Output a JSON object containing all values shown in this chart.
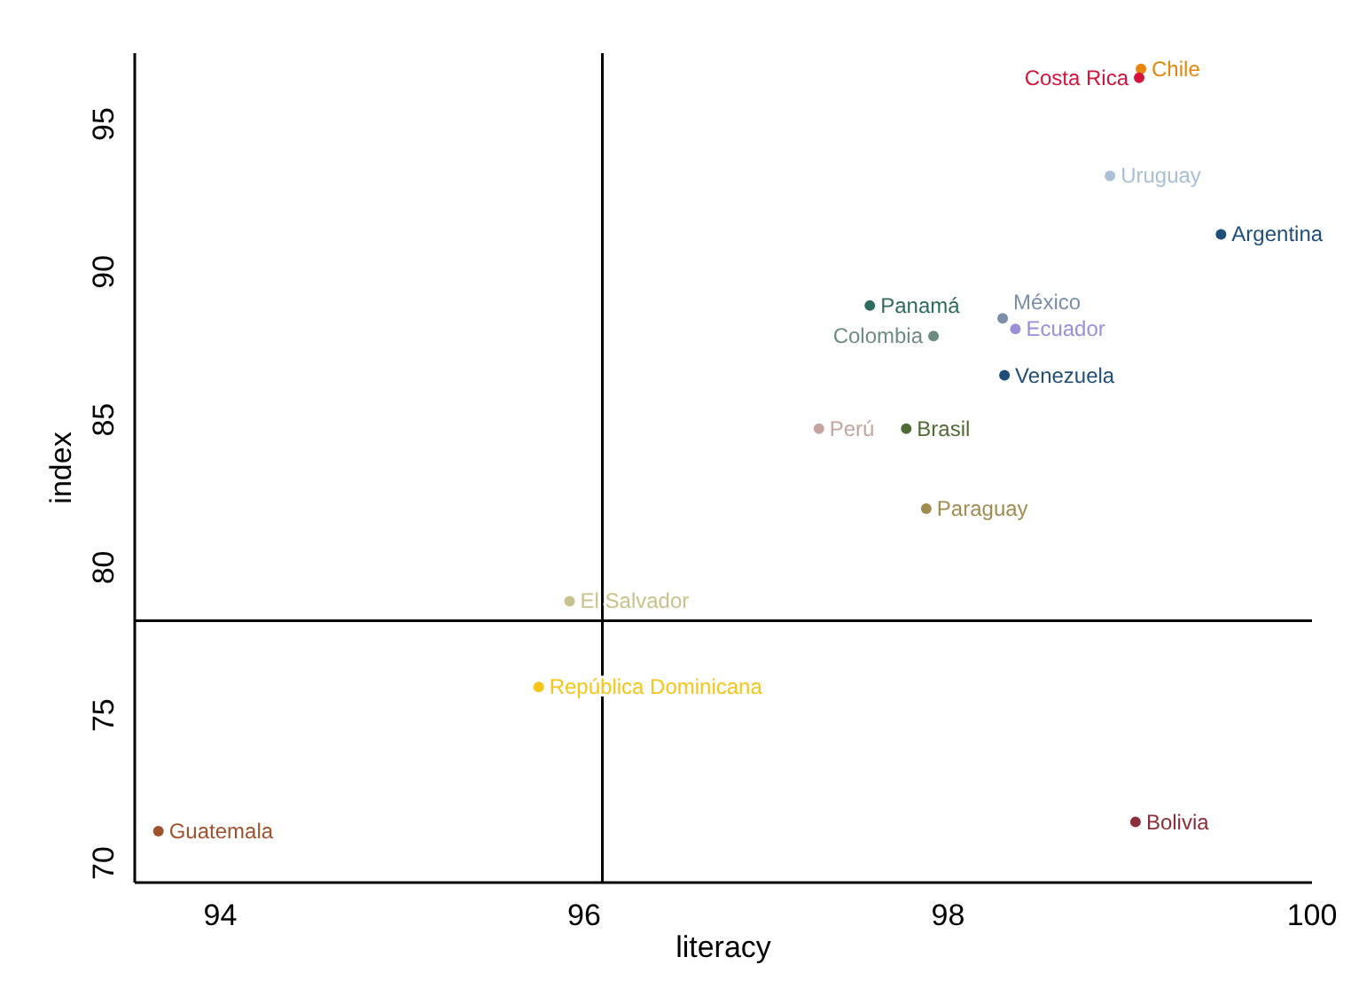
{
  "chart_data": {
    "type": "scatter",
    "xlabel": "literacy",
    "ylabel": "index",
    "xlim": [
      93.53,
      100
    ],
    "ylim": [
      69.34,
      97.4
    ],
    "xticks": [
      94,
      96,
      98,
      100
    ],
    "yticks": [
      70,
      75,
      80,
      85,
      90,
      95
    ],
    "grid": false,
    "marker": "circle",
    "ref_lines": [
      {
        "axis": "x",
        "value": 96.1,
        "color": "#000000"
      },
      {
        "axis": "y",
        "value": 78.2,
        "color": "#000000"
      }
    ],
    "series": [
      {
        "name": "Chile",
        "color": "#e8860c",
        "x": [
          99.06
        ],
        "values": [
          96.87
        ]
      },
      {
        "name": "Costa Rica",
        "color": "#d4143c",
        "x": [
          99.05
        ],
        "values": [
          96.57
        ]
      },
      {
        "name": "Uruguay",
        "color": "#a9bfd3",
        "x": [
          98.89
        ],
        "values": [
          93.25
        ]
      },
      {
        "name": "Argentina",
        "color": "#1f4e79",
        "x": [
          99.5
        ],
        "values": [
          91.27
        ]
      },
      {
        "name": "Panamá",
        "color": "#2e6b5e",
        "x": [
          97.57
        ],
        "values": [
          88.86
        ]
      },
      {
        "name": "México",
        "color": "#7a8ea8",
        "x": [
          98.3
        ],
        "values": [
          88.43
        ]
      },
      {
        "name": "Ecuador",
        "color": "#9b8fd9",
        "x": [
          98.37
        ],
        "values": [
          88.07
        ]
      },
      {
        "name": "Colombia",
        "color": "#6e8c84",
        "x": [
          97.92
        ],
        "values": [
          87.83
        ]
      },
      {
        "name": "Venezuela",
        "color": "#1f4e79",
        "x": [
          98.31
        ],
        "values": [
          86.5
        ]
      },
      {
        "name": "Perú",
        "color": "#c4a49e",
        "x": [
          97.29
        ],
        "values": [
          84.7
        ]
      },
      {
        "name": "Brasil",
        "color": "#4f6b35",
        "x": [
          97.77
        ],
        "values": [
          84.7
        ]
      },
      {
        "name": "Paraguay",
        "color": "#a08c50",
        "x": [
          97.88
        ],
        "values": [
          81.99
        ]
      },
      {
        "name": "El Salvador",
        "color": "#c8c28c",
        "x": [
          95.92
        ],
        "values": [
          78.86
        ]
      },
      {
        "name": "República Dominicana",
        "color": "#f5c518",
        "x": [
          95.75
        ],
        "values": [
          75.96
        ]
      },
      {
        "name": "Guatemala",
        "color": "#a0522d",
        "x": [
          93.66
        ],
        "values": [
          71.08
        ]
      },
      {
        "name": "Bolivia",
        "color": "#8b2e3a",
        "x": [
          99.03
        ],
        "values": [
          71.39
        ]
      }
    ]
  }
}
